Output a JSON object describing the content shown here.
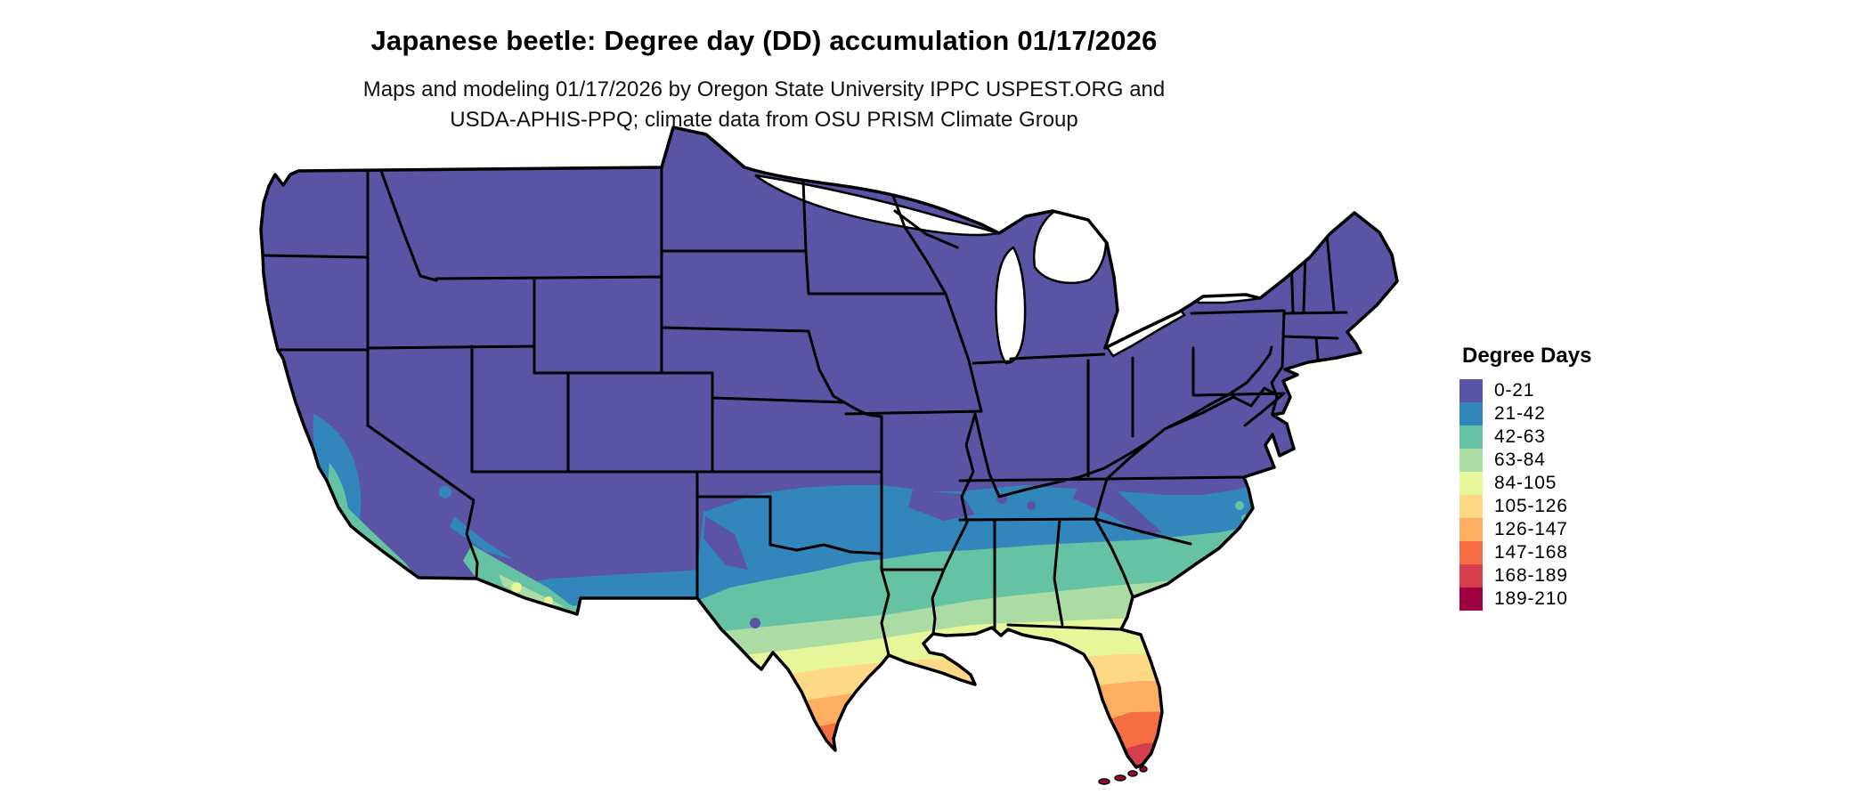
{
  "title": "Japanese beetle: Degree day (DD) accumulation 01/17/2026",
  "subtitle_line1": "Maps and modeling 01/17/2026 by Oregon State University IPPC USPEST.ORG and",
  "subtitle_line2": "USDA-APHIS-PPQ; climate data from OSU PRISM Climate Group",
  "legend": {
    "title": "Degree Days",
    "classes": [
      {
        "label": "0-21",
        "color": "#5b54a4"
      },
      {
        "label": "21-42",
        "color": "#3286bc"
      },
      {
        "label": "42-63",
        "color": "#66c2a5"
      },
      {
        "label": "63-84",
        "color": "#aadca4"
      },
      {
        "label": "84-105",
        "color": "#e7f59b"
      },
      {
        "label": "105-126",
        "color": "#fdd985"
      },
      {
        "label": "126-147",
        "color": "#fdae61"
      },
      {
        "label": "147-168",
        "color": "#f46d43"
      },
      {
        "label": "168-189",
        "color": "#d53e4f"
      },
      {
        "label": "189-210",
        "color": "#9e0142"
      }
    ]
  },
  "map": {
    "type": "choropleth-raster",
    "region": "Contiguous United States",
    "value_name": "Degree Days",
    "state_border_color": "#000000",
    "water_color": "#ffffff"
  }
}
